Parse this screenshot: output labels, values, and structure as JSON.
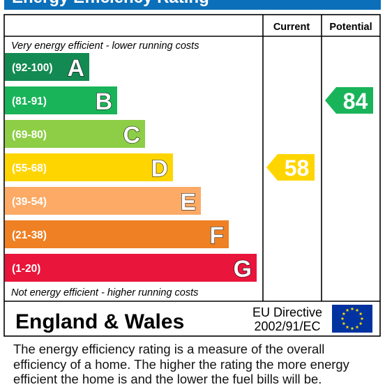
{
  "title": "Energy Efficiency Rating",
  "colors": {
    "header": "#0c6fb9",
    "A": "#138a52",
    "B": "#19b459",
    "C": "#8dce46",
    "D": "#ffd500",
    "E": "#fcaa65",
    "F": "#ef8023",
    "G": "#e9153b"
  },
  "chart_data": {
    "type": "bar",
    "title": "Energy Efficiency Rating",
    "columns": [
      "Current",
      "Potential"
    ],
    "top_note": "Very energy efficient - lower running costs",
    "bottom_note": "Not energy efficient - higher running costs",
    "bands": [
      {
        "letter": "A",
        "range": "(92-100)",
        "min": 92,
        "max": 100,
        "color": "#138a52"
      },
      {
        "letter": "B",
        "range": "(81-91)",
        "min": 81,
        "max": 91,
        "color": "#19b459"
      },
      {
        "letter": "C",
        "range": "(69-80)",
        "min": 69,
        "max": 80,
        "color": "#8dce46"
      },
      {
        "letter": "D",
        "range": "(55-68)",
        "min": 55,
        "max": 68,
        "color": "#ffd500"
      },
      {
        "letter": "E",
        "range": "(39-54)",
        "min": 39,
        "max": 54,
        "color": "#fcaa65"
      },
      {
        "letter": "F",
        "range": "(21-38)",
        "min": 21,
        "max": 38,
        "color": "#ef8023"
      },
      {
        "letter": "G",
        "range": "(1-20)",
        "min": 1,
        "max": 20,
        "color": "#e9153b"
      }
    ],
    "current": {
      "value": 58,
      "band": "D",
      "color": "#ffd500"
    },
    "potential": {
      "value": 84,
      "band": "B",
      "color": "#19b459"
    },
    "region": "England & Wales",
    "directive": [
      "EU Directive",
      "2002/91/EC"
    ]
  },
  "caption": "The energy efficiency rating is a measure of the overall efficiency of a home.  The higher the rating the more energy efficient the home is and the lower the fuel bills will be."
}
